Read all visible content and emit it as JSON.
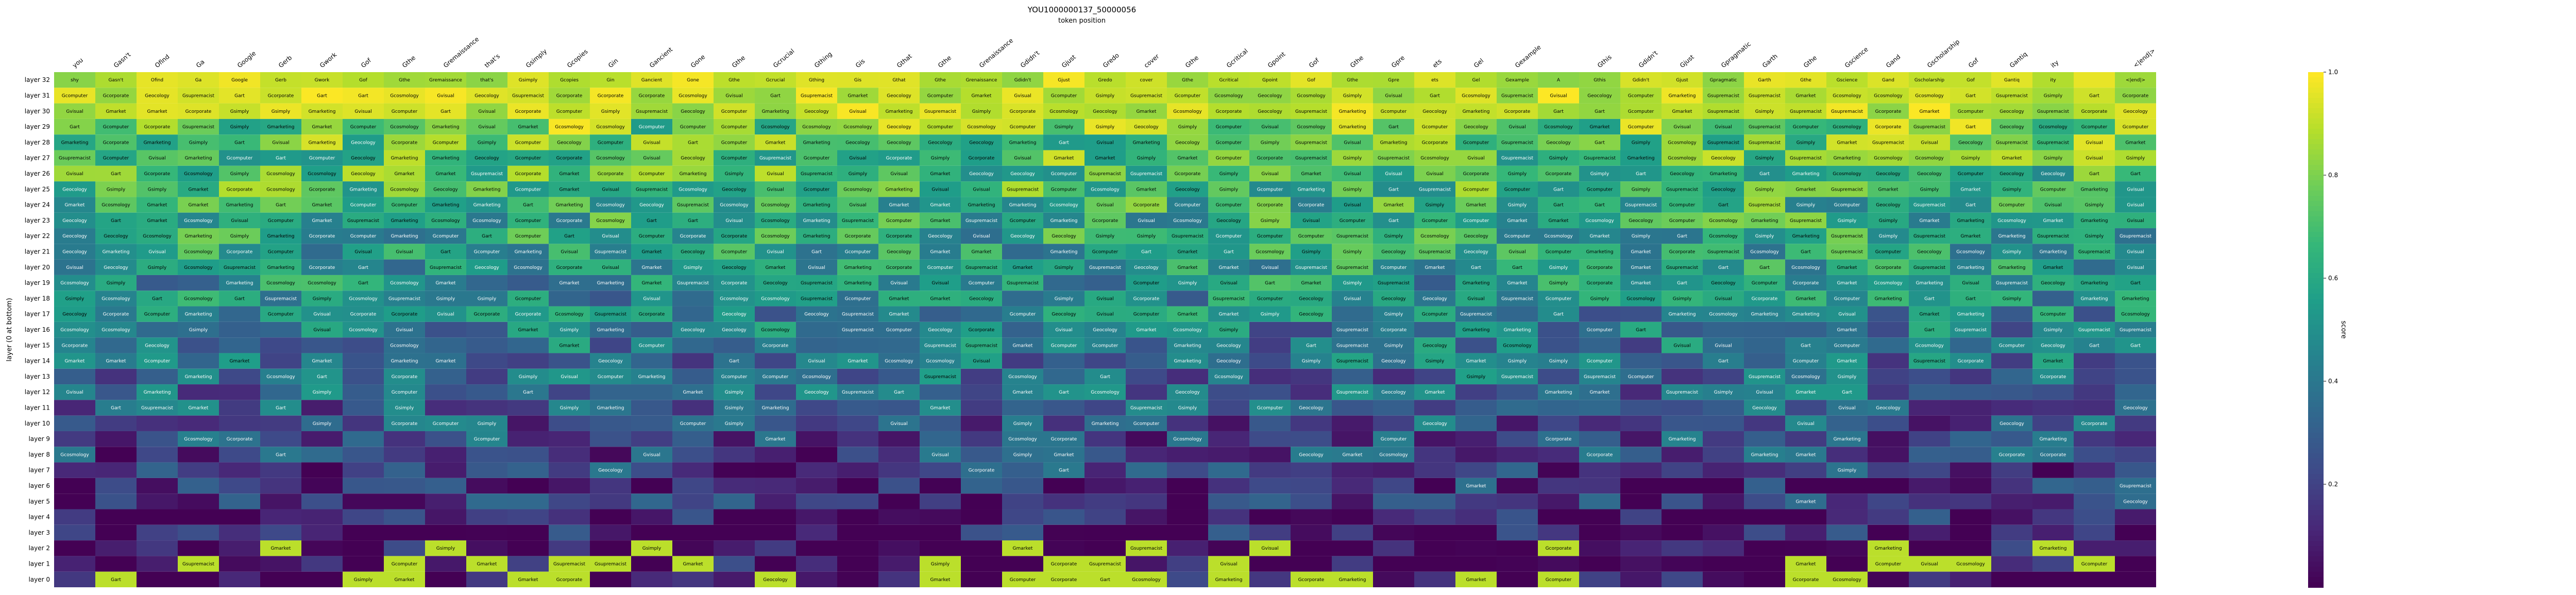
{
  "chart_data": {
    "type": "heatmap",
    "title": "YOU1000000137_50000056",
    "subtitle": "token position",
    "ylabel": "layer (0 at bottom)",
    "colorbar": {
      "label": "score",
      "range": [
        0.0,
        1.0
      ],
      "ticks": [
        "0.2",
        "0.4",
        "0.6",
        "0.8",
        "1.0"
      ],
      "colormap": "viridis"
    },
    "x_tokens": [
      "you",
      "Gasn't",
      "Ofind",
      "Ga",
      "Google",
      "Gerb",
      "Gwork",
      "Gof",
      "Gthe",
      "Gremaissance",
      "that's",
      "Gsimply",
      "Gcopies",
      "Gin",
      "Gancient",
      "Gone",
      "Gthe",
      "Gcrucial",
      "Gthing",
      "Gis",
      "Gthat",
      "Gthe",
      "Grenaissance",
      "Gdidn't",
      "Gjust",
      "Gredo",
      "cover",
      "Gthe",
      "Gcritical",
      "Gpoint",
      "Gof",
      "Gthe",
      "Gpre",
      "ets",
      "Gel",
      "Gexample",
      "",
      "Gthis",
      "Gdidn't",
      "Gjust",
      "Gpragmatic",
      "Garth",
      "Gthe",
      "Gscience",
      "Gand",
      "Gscholarship",
      "Gof",
      "Gantiq",
      "ity",
      "",
      "<|end|>"
    ],
    "y_layers": [
      "layer 32",
      "layer 31",
      "layer 30",
      "layer 29",
      "layer 28",
      "layer 27",
      "layer 26",
      "layer 25",
      "layer 24",
      "layer 23",
      "layer 22",
      "layer 21",
      "layer 20",
      "layer 19",
      "layer 18",
      "layer 17",
      "layer 16",
      "layer 15",
      "layer 14",
      "layer 13",
      "layer 12",
      "layer 11",
      "layer 10",
      "layer 9",
      "layer 8",
      "layer 7",
      "layer 6",
      "layer 5",
      "layer 4",
      "layer 3",
      "layer 2",
      "layer 1",
      "layer 0"
    ],
    "highlight_rows_top": [
      [
        "shy",
        "Gasn't",
        "Ofind",
        "Ga",
        "Google",
        "Gerb",
        "Gwork",
        "Gof",
        "Gthe",
        "Gremaissance",
        "that's",
        "Gsimply",
        "Gcopies",
        "Gin",
        "Gancient",
        "Gone",
        "Gthe",
        "Gcrucial",
        "Gthing",
        "Gis",
        "Gthat",
        "Gthe",
        "Grenaissance",
        "Gdidn't",
        "Gjust",
        "Gredo",
        "cover",
        "Gthe",
        "Gcritical",
        "Gpoint",
        "Gof",
        "Gthe",
        "Gpre",
        "ets",
        "Gel",
        "Gexample",
        "A",
        "Gthis",
        "Gdidn't",
        "Gjust",
        "Gpragmatic",
        "Garth",
        "Gthe",
        "Gscience",
        "Gand",
        "Gscholarship",
        "Gof",
        "Gantiq",
        "ity",
        "",
        "<|end|>"
      ]
    ],
    "common_cell_words": [
      "Geocology",
      "Gmarketing",
      "Gart",
      "Gcorporate",
      "Gsimply",
      "Gcomputer",
      "Gcosmology",
      "Gsupremacist",
      "Gvisual",
      "Gmarket"
    ]
  }
}
